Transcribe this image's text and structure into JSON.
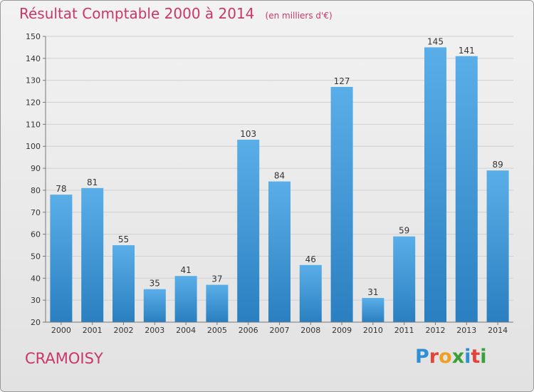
{
  "title": "Résultat Comptable 2000 à 2014",
  "unit": "(en milliers d'€)",
  "commune": "CRAMOISY",
  "logo": {
    "letters": [
      "P",
      "r",
      "o",
      "x",
      "i",
      "t",
      "i"
    ],
    "colors": [
      "#2e8fd6",
      "#e2443a",
      "#f0a020",
      "#3aa03a",
      "#2e8fd6",
      "#e2443a",
      "#3aa03a"
    ]
  },
  "chart_data": {
    "type": "bar",
    "categories": [
      "2000",
      "2001",
      "2002",
      "2003",
      "2004",
      "2005",
      "2006",
      "2007",
      "2008",
      "2009",
      "2010",
      "2011",
      "2012",
      "2013",
      "2014"
    ],
    "values": [
      78,
      81,
      55,
      35,
      41,
      37,
      103,
      84,
      46,
      127,
      31,
      59,
      145,
      141,
      89
    ],
    "ylim": [
      20,
      150
    ],
    "yticks": [
      20,
      30,
      40,
      50,
      60,
      70,
      80,
      90,
      100,
      110,
      120,
      130,
      140,
      150
    ],
    "grid": true,
    "bar_color": "#3a8fd0"
  }
}
